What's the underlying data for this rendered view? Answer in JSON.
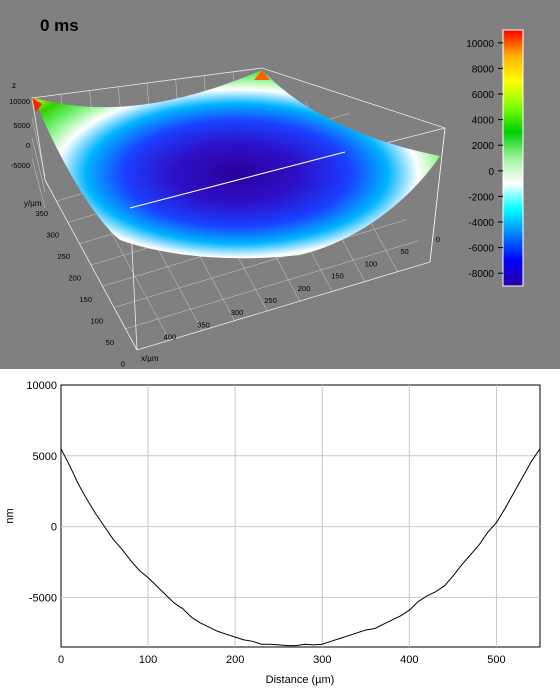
{
  "surface_view": {
    "time_label": "0 ms",
    "z_axis_label": "z",
    "z_ticks": [
      "10000",
      "5000",
      "0",
      "-5000"
    ],
    "y_axis_label": "y/µm",
    "y_ticks": [
      "350",
      "300",
      "250",
      "200",
      "150",
      "100",
      "50",
      "0"
    ],
    "x_axis_label": "x/µm",
    "x_ticks": [
      "0",
      "50",
      "100",
      "150",
      "200",
      "250",
      "300",
      "350",
      "400"
    ],
    "colorbar": {
      "min": -9000,
      "max": 11000,
      "ticks": [
        "10000",
        "8000",
        "6000",
        "4000",
        "2000",
        "0",
        "-2000",
        "-4000",
        "-6000",
        "-8000"
      ],
      "tick_values": [
        10000,
        8000,
        6000,
        4000,
        2000,
        0,
        -2000,
        -4000,
        -6000,
        -8000
      ],
      "colors": [
        "#ff0000",
        "#ffb000",
        "#ffff00",
        "#80ff00",
        "#00d000",
        "#a0f0a0",
        "#ffffff",
        "#00ffff",
        "#0080ff",
        "#0000ff",
        "#3000a0"
      ]
    }
  },
  "chart_data": {
    "type": "line",
    "xlabel": "Distance (µm)",
    "ylabel": "nm",
    "xlim": [
      0,
      550
    ],
    "ylim": [
      -8500,
      10000
    ],
    "grid": true,
    "x_ticks": [
      0,
      100,
      200,
      300,
      400,
      500
    ],
    "y_ticks": [
      10000,
      5000,
      0,
      -5000
    ],
    "x_tick_labels": [
      "0",
      "100",
      "200",
      "300",
      "400",
      "500"
    ],
    "y_tick_labels": [
      "10000",
      "5000",
      "0",
      "-5000"
    ],
    "series": [
      {
        "x": [
          0,
          10,
          20,
          30,
          40,
          50,
          60,
          70,
          80,
          90,
          100,
          110,
          120,
          130,
          140,
          150,
          160,
          170,
          180,
          190,
          200,
          210,
          220,
          230,
          240,
          250,
          260,
          270,
          280,
          290,
          300,
          310,
          320,
          330,
          340,
          350,
          360,
          370,
          380,
          390,
          400,
          410,
          420,
          430,
          440,
          450,
          460,
          470,
          480,
          490,
          500,
          510,
          520,
          530,
          540,
          550
        ],
        "y": [
          5500,
          4300,
          3000,
          1900,
          900,
          0,
          -900,
          -1600,
          -2400,
          -3100,
          -3600,
          -4200,
          -4800,
          -5400,
          -5800,
          -6400,
          -6800,
          -7100,
          -7400,
          -7600,
          -7800,
          -8000,
          -8100,
          -8300,
          -8300,
          -8350,
          -8400,
          -8400,
          -8300,
          -8350,
          -8300,
          -8100,
          -7900,
          -7700,
          -7500,
          -7300,
          -7200,
          -6900,
          -6600,
          -6300,
          -5900,
          -5300,
          -4900,
          -4600,
          -4200,
          -3500,
          -2700,
          -2000,
          -1300,
          -400,
          300,
          1300,
          2400,
          3500,
          4600,
          5500
        ],
        "color": "#000000"
      }
    ]
  }
}
